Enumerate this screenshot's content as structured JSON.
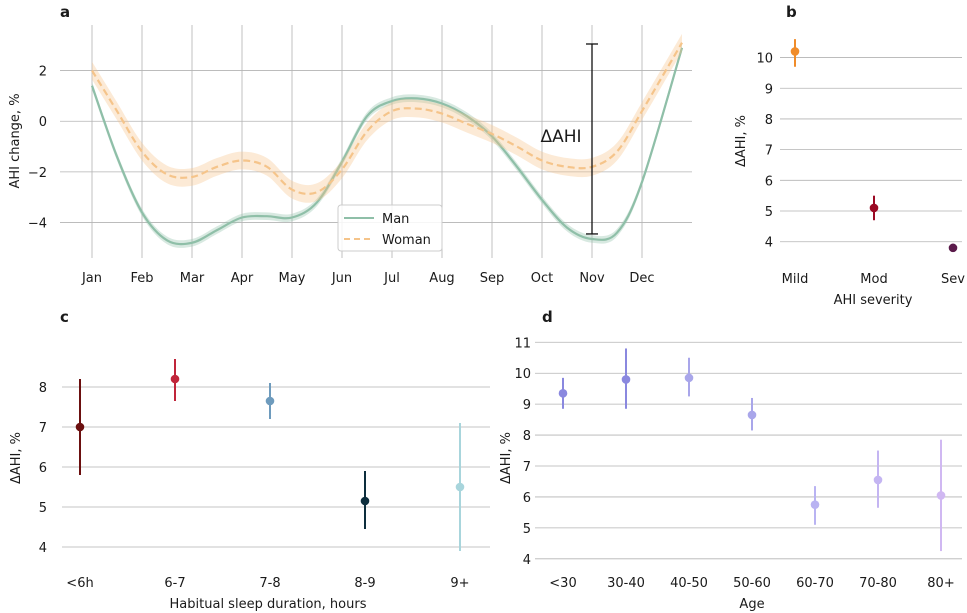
{
  "colors": {
    "man": "#8fbfa8",
    "woman": "#f5c48a",
    "grid": "#b3b3b3"
  },
  "chart_data": [
    {
      "id": "a",
      "panel_label": "a",
      "type": "line",
      "xlabel": "",
      "ylabel": "AHI change, %",
      "ylim": [
        -5.4,
        3.8
      ],
      "yticks": [
        "−4",
        "−2",
        "0",
        "2"
      ],
      "categories": [
        "Jan",
        "Feb",
        "Mar",
        "Apr",
        "May",
        "Jun",
        "Jul",
        "Aug",
        "Sep",
        "Oct",
        "Nov",
        "Dec"
      ],
      "grid": "both",
      "legend_position": "lower-center",
      "annotation": "ΔAHI",
      "annotation_range": [
        -4.45,
        3.05
      ],
      "series": [
        {
          "name": "Man",
          "style": "solid",
          "color": "#8fbfa8",
          "x": [
            0,
            0.5,
            1,
            1.5,
            2,
            2.5,
            3,
            3.5,
            4,
            4.5,
            5,
            5.5,
            6,
            6.5,
            7,
            7.5,
            8,
            8.5,
            9,
            9.5,
            10,
            10.5,
            11,
            11.8
          ],
          "y": [
            1.4,
            -1.4,
            -3.6,
            -4.7,
            -4.8,
            -4.3,
            -3.8,
            -3.75,
            -3.8,
            -3.2,
            -1.6,
            0.2,
            0.8,
            0.9,
            0.7,
            0.2,
            -0.6,
            -1.8,
            -3.1,
            -4.2,
            -4.65,
            -4.4,
            -2.4,
            2.9
          ],
          "band": 0.15
        },
        {
          "name": "Woman",
          "style": "dashed",
          "color": "#f5c48a",
          "x": [
            0,
            0.5,
            1,
            1.5,
            2,
            2.5,
            3,
            3.5,
            4,
            4.5,
            5,
            5.5,
            6,
            6.5,
            7,
            7.5,
            8,
            8.5,
            9,
            9.5,
            10,
            10.5,
            11,
            11.8
          ],
          "y": [
            2.0,
            0.4,
            -1.2,
            -2.1,
            -2.2,
            -1.8,
            -1.55,
            -1.8,
            -2.7,
            -2.8,
            -1.9,
            -0.4,
            0.4,
            0.5,
            0.3,
            -0.1,
            -0.5,
            -1.0,
            -1.55,
            -1.8,
            -1.8,
            -1.2,
            0.4,
            3.1
          ],
          "band": 0.35
        }
      ]
    },
    {
      "id": "b",
      "panel_label": "b",
      "type": "scatter",
      "xlabel": "AHI severity",
      "ylabel": "ΔAHI, %",
      "ylim": [
        3.6,
        10.8
      ],
      "yticks": [
        "4",
        "5",
        "6",
        "7",
        "8",
        "9",
        "10"
      ],
      "categories": [
        "Mild",
        "Mod",
        "Sev"
      ],
      "values": [
        10.2,
        5.1,
        3.8
      ],
      "error_low": [
        9.7,
        4.7,
        3.8
      ],
      "error_high": [
        10.6,
        5.5,
        3.8
      ],
      "point_colors": [
        "#f08c2a",
        "#9b0a24",
        "#5a1a4a"
      ]
    },
    {
      "id": "c",
      "panel_label": "c",
      "type": "scatter",
      "xlabel": "Habitual sleep duration, hours",
      "ylabel": "ΔAHI, %",
      "ylim": [
        3.7,
        8.8
      ],
      "yticks": [
        "4",
        "5",
        "6",
        "7",
        "8"
      ],
      "categories": [
        "<6h",
        "6-7",
        "7-8",
        "8-9",
        "9+"
      ],
      "values": [
        7.0,
        8.2,
        7.65,
        5.15,
        5.5
      ],
      "error_low": [
        5.8,
        7.65,
        7.2,
        4.45,
        3.9
      ],
      "error_high": [
        8.2,
        8.7,
        8.1,
        5.9,
        7.1
      ],
      "point_colors": [
        "#6b0f0f",
        "#c0253a",
        "#6e9bbd",
        "#0d2e3d",
        "#a8d5dc"
      ]
    },
    {
      "id": "d",
      "panel_label": "d",
      "type": "scatter",
      "xlabel": "Age",
      "ylabel": "ΔAHI, %",
      "ylim": [
        3.8,
        11.3
      ],
      "yticks": [
        "4",
        "5",
        "6",
        "7",
        "8",
        "9",
        "10",
        "11"
      ],
      "categories": [
        "<30",
        "30-40",
        "40-50",
        "50-60",
        "60-70",
        "70-80",
        "80+"
      ],
      "values": [
        9.35,
        9.8,
        9.85,
        8.65,
        5.75,
        6.55,
        6.05
      ],
      "error_low": [
        8.85,
        8.85,
        9.25,
        8.15,
        5.1,
        5.65,
        4.25
      ],
      "error_high": [
        9.85,
        10.8,
        10.5,
        9.2,
        6.35,
        7.5,
        7.85
      ],
      "point_colors": [
        "#8a88df",
        "#8a88df",
        "#a9a6ea",
        "#a9a6ea",
        "#b9b3f2",
        "#c4b5f2",
        "#d0b8f2"
      ]
    }
  ]
}
